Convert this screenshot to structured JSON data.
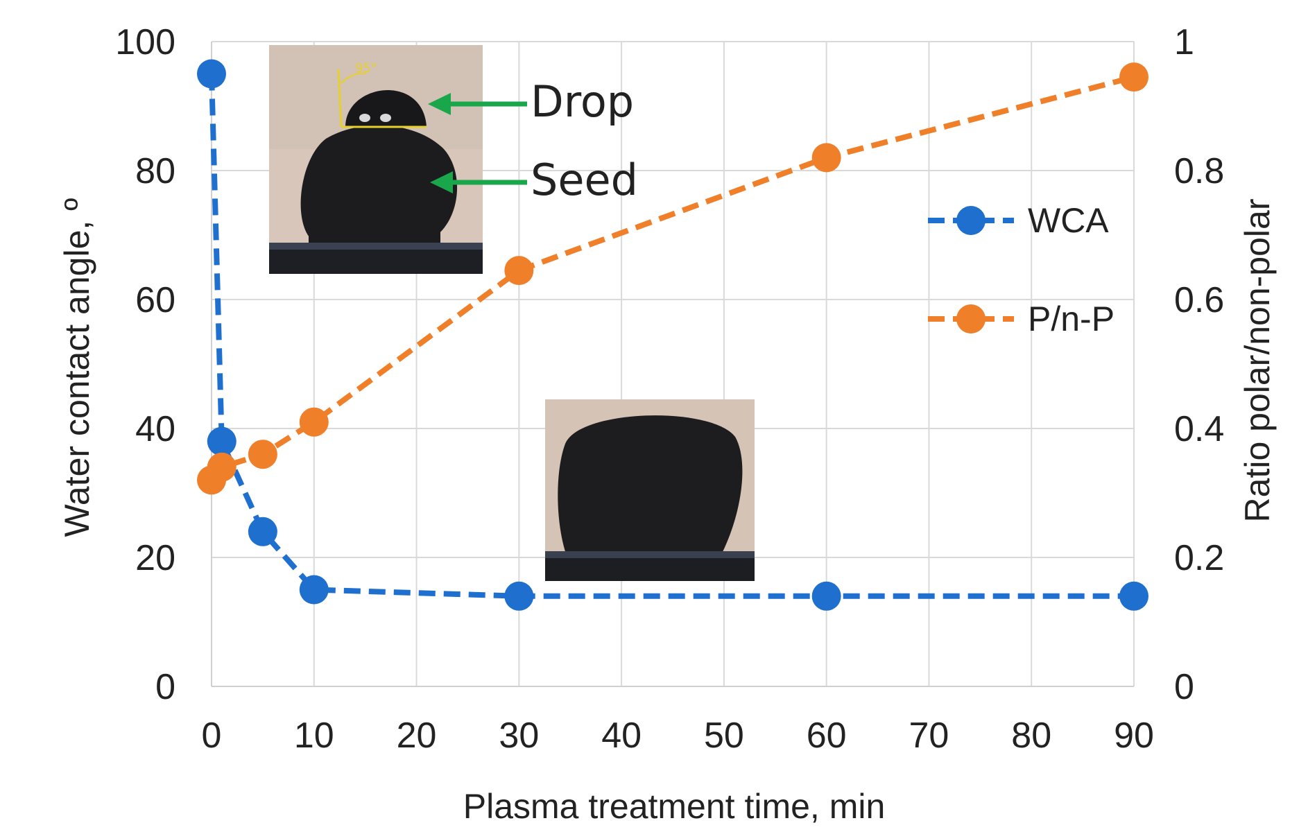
{
  "chart_data": {
    "type": "line",
    "x": [
      0,
      1,
      5,
      10,
      30,
      60,
      90
    ],
    "xlabel": "Plasma treatment time, min",
    "xlim": [
      0,
      90
    ],
    "xticks": [
      "0",
      "10",
      "20",
      "30",
      "40",
      "50",
      "60",
      "70",
      "80",
      "90"
    ],
    "ylabel": "Water contact angle, º",
    "ylim": [
      0,
      100
    ],
    "yticks": [
      "0",
      "20",
      "40",
      "60",
      "80",
      "100"
    ],
    "y2label": "Ratio polar/non-polar",
    "y2lim": [
      0,
      1
    ],
    "y2ticks": [
      "0",
      "0.2",
      "0.4",
      "0.6",
      "0.8",
      "1"
    ],
    "grid": true,
    "legend_position": "right",
    "series": [
      {
        "name": "WCA",
        "axis": "left",
        "color": "#1f6fcf",
        "style": "dashed-marker",
        "values": [
          95,
          38,
          24,
          15,
          14,
          14,
          14
        ]
      },
      {
        "name": "P/n-P",
        "axis": "right",
        "color": "#f07f2a",
        "style": "dashed-marker",
        "values": [
          0.32,
          0.34,
          0.36,
          0.41,
          0.645,
          0.82,
          0.945
        ]
      }
    ],
    "annotations": {
      "drop_label": "Drop",
      "seed_label": "Seed",
      "angle_label": "95°",
      "arrow_color": "#1aa64a"
    }
  }
}
